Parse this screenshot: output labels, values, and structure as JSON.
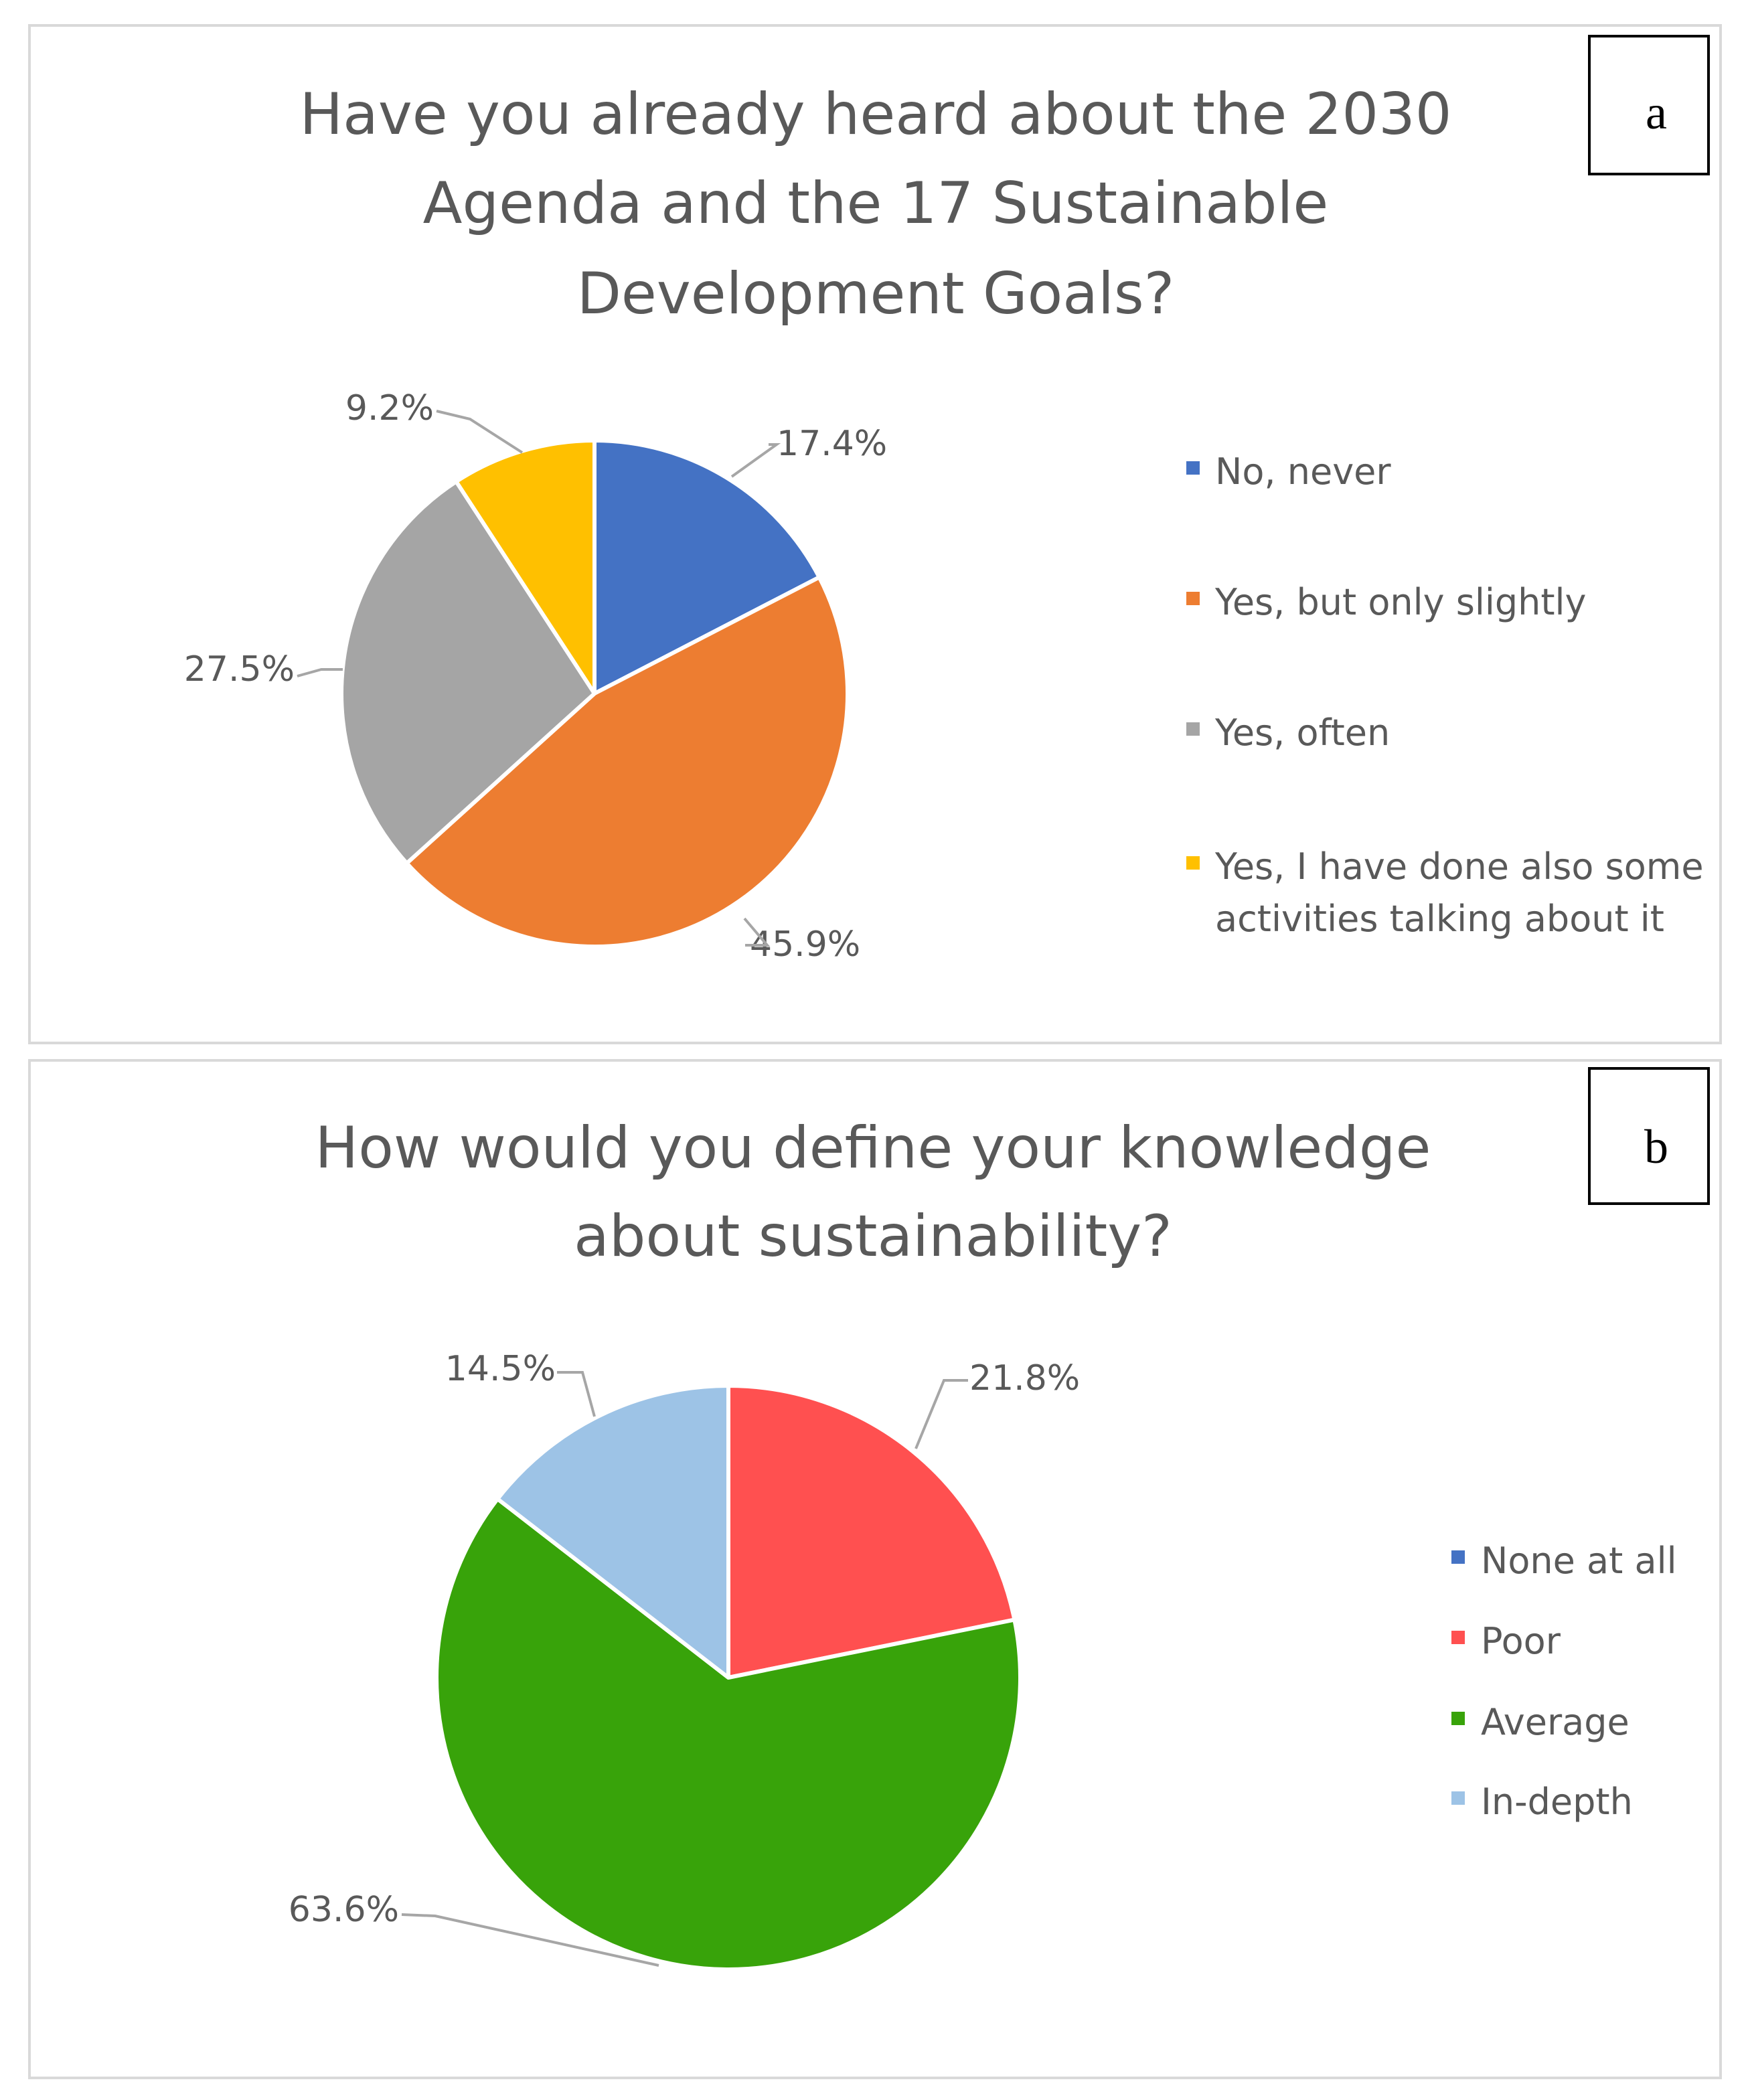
{
  "chart_data": [
    {
      "type": "pie",
      "panel_letter": "a",
      "title_lines": [
        "Have you already heard about the 2030",
        "Agenda and the 17 Sustainable",
        "Development  Goals?"
      ],
      "categories": [
        "No, never",
        "Yes, but only slightly",
        "Yes, often",
        "Yes, I have done also some activities talking about it"
      ],
      "legend_lines": [
        [
          "No, never"
        ],
        [
          "Yes, but only slightly"
        ],
        [
          "Yes, often"
        ],
        [
          "Yes, I have done also some",
          "activities talking about it"
        ]
      ],
      "values": [
        17.4,
        45.9,
        27.5,
        9.2
      ],
      "labels": [
        "17.4%",
        "45.9%",
        "27.5%",
        "9.2%"
      ],
      "colors": [
        "#4472C4",
        "#ED7D31",
        "#A5A5A5",
        "#FFC000"
      ],
      "legend": "right"
    },
    {
      "type": "pie",
      "panel_letter": "b",
      "title_lines": [
        "How would you define your knowledge",
        "about sustainability?"
      ],
      "categories": [
        "None at all",
        "Poor",
        "Average",
        "In-depth"
      ],
      "legend_lines": [
        [
          "None at all"
        ],
        [
          "Poor"
        ],
        [
          "Average"
        ],
        [
          "In-depth"
        ]
      ],
      "values": [
        0,
        21.8,
        63.6,
        14.5
      ],
      "labels": [
        "",
        "21.8%",
        "63.6%",
        "14.5%"
      ],
      "colors": [
        "#4472C4",
        "#FF5050",
        "#38A30A",
        "#9DC3E6"
      ],
      "legend": "right"
    }
  ]
}
